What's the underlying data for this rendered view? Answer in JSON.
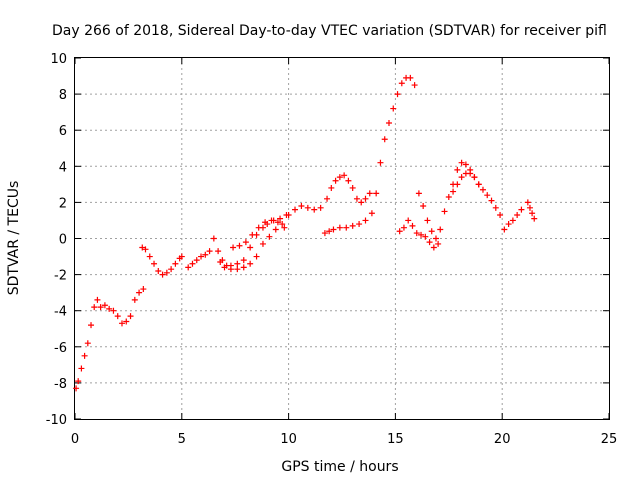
{
  "chart_data": {
    "type": "scatter",
    "title": "Day 266 of 2018, Sidereal Day-to-day VTEC variation (SDTVAR) for receiver pifl",
    "xlabel": "GPS time / hours",
    "ylabel": "SDTVAR / TECUs",
    "xlim": [
      0,
      25
    ],
    "ylim": [
      -10,
      10
    ],
    "xticks": [
      "0",
      "5",
      "10",
      "15",
      "20",
      "25"
    ],
    "yticks": [
      "-10",
      "-8",
      "-6",
      "-4",
      "-2",
      "0",
      "2",
      "4",
      "6",
      "8",
      "10"
    ],
    "grid": true,
    "marker": "plus",
    "color": "#ff0000",
    "series": [
      {
        "x": [
          0.05,
          0.15,
          0.3,
          0.45,
          0.6,
          0.75,
          0.9,
          1.05,
          1.2,
          1.4,
          1.6,
          1.8,
          2.0,
          2.2,
          2.4,
          2.6,
          2.8,
          3.0,
          3.2
        ],
        "y": [
          -8.3,
          -7.9,
          -7.2,
          -6.5,
          -5.8,
          -4.8,
          -3.8,
          -3.4,
          -3.8,
          -3.7,
          -3.9,
          -4.0,
          -4.3,
          -4.7,
          -4.6,
          -4.3,
          -3.4,
          -3.0,
          -2.8
        ]
      },
      {
        "x": [
          3.15,
          3.3,
          3.5,
          3.7,
          3.9,
          4.1,
          4.3,
          4.5,
          4.7,
          4.9,
          5.0
        ],
        "y": [
          -0.5,
          -0.6,
          -1.0,
          -1.4,
          -1.8,
          -2.0,
          -1.9,
          -1.7,
          -1.4,
          -1.1,
          -1.0
        ]
      },
      {
        "x": [
          5.3,
          5.5,
          5.7,
          5.9,
          6.1,
          6.3,
          6.5,
          6.7,
          6.9,
          7.1,
          7.3,
          7.6,
          7.9,
          8.2,
          8.5,
          8.8,
          9.0,
          9.3,
          9.6,
          9.9
        ],
        "y": [
          -1.6,
          -1.4,
          -1.2,
          -1.0,
          -0.9,
          -0.7,
          0.0,
          -0.7,
          -1.2,
          -1.5,
          -1.5,
          -1.4,
          -1.2,
          -0.5,
          0.2,
          0.6,
          0.8,
          1.0,
          1.1,
          1.3
        ]
      },
      {
        "x": [
          6.8,
          7.0,
          7.3,
          7.6,
          7.9,
          8.2,
          8.5,
          8.8,
          9.1,
          9.4,
          9.7,
          10.0,
          10.3,
          10.6,
          10.9,
          11.2,
          11.5,
          11.8,
          12.0,
          12.2,
          12.4,
          12.6,
          12.8,
          13.0,
          13.2,
          13.4,
          13.6,
          13.8
        ],
        "y": [
          -1.3,
          -1.6,
          -1.7,
          -1.7,
          -1.6,
          -1.4,
          -1.0,
          -0.3,
          0.1,
          0.5,
          0.8,
          1.3,
          1.6,
          1.8,
          1.7,
          1.6,
          1.7,
          2.2,
          2.8,
          3.2,
          3.4,
          3.5,
          3.2,
          2.8,
          2.2,
          2.0,
          2.2,
          2.5
        ]
      },
      {
        "x": [
          7.4,
          7.7,
          8.0,
          8.3,
          8.6,
          8.9,
          9.2,
          9.5,
          9.8
        ],
        "y": [
          -0.5,
          -0.4,
          -0.2,
          0.2,
          0.6,
          0.9,
          1.0,
          0.9,
          0.6
        ]
      },
      {
        "x": [
          11.7,
          11.9,
          12.1,
          12.4,
          12.7,
          13.0,
          13.3,
          13.6,
          13.9,
          14.1,
          14.3,
          14.5,
          14.7,
          14.9,
          15.1,
          15.3,
          15.5,
          15.7,
          15.9
        ],
        "y": [
          0.3,
          0.4,
          0.5,
          0.6,
          0.6,
          0.7,
          0.8,
          1.0,
          1.4,
          2.5,
          4.2,
          5.5,
          6.4,
          7.2,
          8.0,
          8.6,
          8.9,
          8.9,
          8.5
        ]
      },
      {
        "x": [
          15.2,
          15.4,
          15.6,
          15.8,
          16.0,
          16.2,
          16.4,
          16.6,
          16.8,
          17.0
        ],
        "y": [
          0.4,
          0.6,
          1.0,
          0.7,
          0.3,
          0.2,
          0.1,
          -0.2,
          -0.5,
          -0.3
        ]
      },
      {
        "x": [
          16.1,
          16.3,
          16.5,
          16.7,
          16.9,
          17.1,
          17.3,
          17.5,
          17.7,
          17.9,
          18.1,
          18.3,
          18.5,
          18.7,
          18.9,
          19.1,
          19.3,
          19.5,
          19.7,
          19.9
        ],
        "y": [
          2.5,
          1.8,
          1.0,
          0.4,
          0.0,
          0.5,
          1.5,
          2.3,
          3.0,
          3.8,
          4.2,
          4.1,
          3.8,
          3.4,
          3.0,
          2.7,
          2.4,
          2.1,
          1.7,
          1.3
        ]
      },
      {
        "x": [
          17.7,
          17.9,
          18.1,
          18.3,
          18.5,
          18.7,
          18.9
        ],
        "y": [
          2.6,
          3.0,
          3.4,
          3.6,
          3.6,
          3.4,
          3.0
        ]
      },
      {
        "x": [
          20.1,
          20.3,
          20.5,
          20.7,
          20.9
        ],
        "y": [
          0.5,
          0.8,
          1.0,
          1.3,
          1.6
        ]
      },
      {
        "x": [
          21.2,
          21.3,
          21.4,
          21.5
        ],
        "y": [
          2.0,
          1.7,
          1.4,
          1.1
        ]
      }
    ]
  }
}
